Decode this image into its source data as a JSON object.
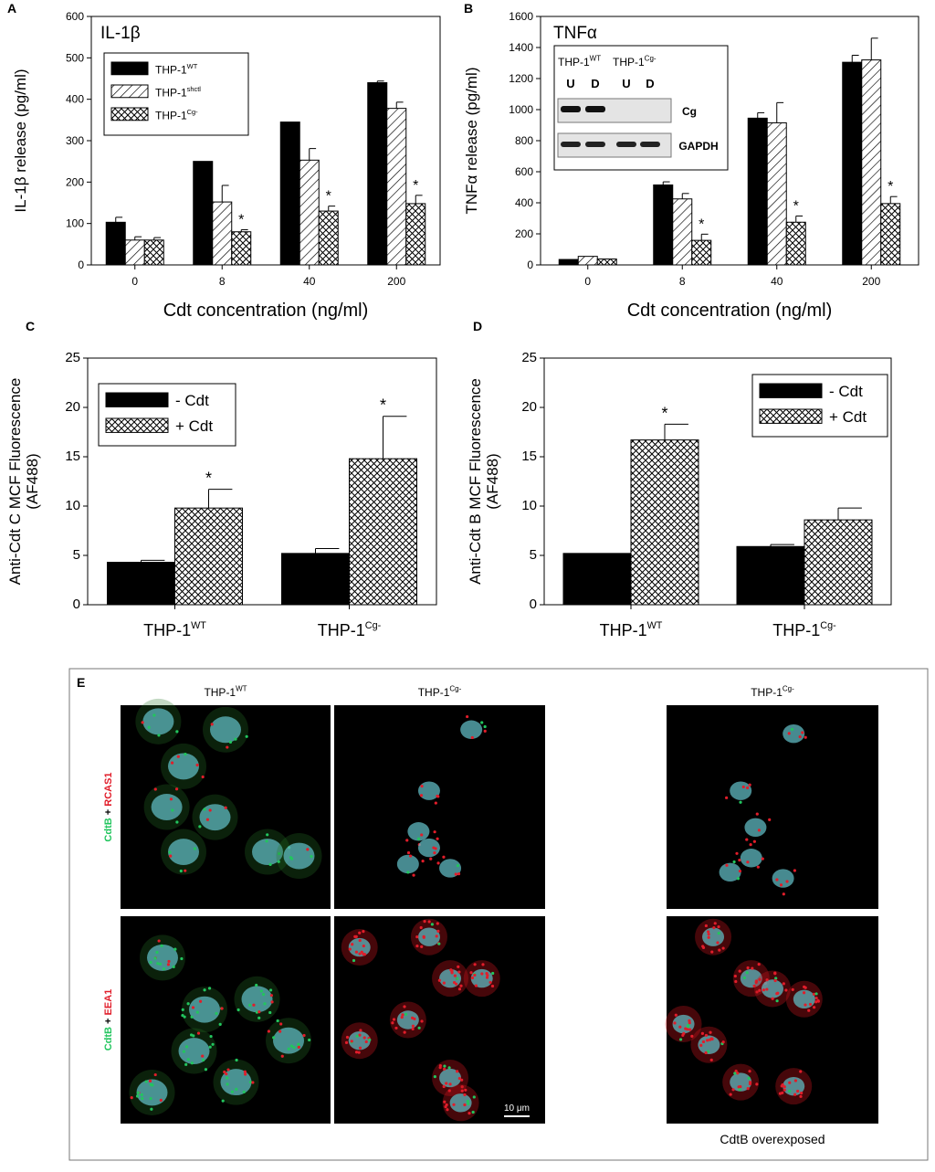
{
  "chart_data": [
    {
      "panel": "A",
      "type": "bar",
      "title": "IL-1β",
      "xlabel": "Cdt concentration (ng/ml)",
      "ylabel": "IL-1β release (pg/ml)",
      "ylim": [
        0,
        600
      ],
      "yticks": [
        0,
        100,
        200,
        300,
        400,
        500,
        600
      ],
      "categories": [
        "0",
        "8",
        "40",
        "200"
      ],
      "legend": "top-left",
      "series": [
        {
          "name": "THP-1",
          "sup": "WT",
          "pattern": "solid",
          "values": [
            103,
            250,
            345,
            440
          ],
          "errors": [
            12,
            0,
            0,
            4
          ]
        },
        {
          "name": "THP-1",
          "sup": "shctl",
          "pattern": "hatch",
          "values": [
            60,
            152,
            253,
            378
          ],
          "errors": [
            8,
            40,
            28,
            15
          ]
        },
        {
          "name": "THP-1",
          "sup": "Cg-",
          "pattern": "cross",
          "values": [
            60,
            80,
            130,
            148
          ],
          "errors": [
            6,
            5,
            12,
            20
          ]
        }
      ],
      "stars": [
        1,
        2,
        3
      ]
    },
    {
      "panel": "B",
      "type": "bar",
      "title": "TNFα",
      "xlabel": "Cdt  concentration (ng/ml)",
      "ylabel": "TNFα release (pg/ml)",
      "ylim": [
        0,
        1600
      ],
      "yticks": [
        0,
        200,
        400,
        600,
        800,
        1000,
        1200,
        1400,
        1600
      ],
      "categories": [
        "0",
        "8",
        "40",
        "200"
      ],
      "series": [
        {
          "name": "THP-1",
          "sup": "WT",
          "pattern": "solid",
          "values": [
            35,
            515,
            945,
            1305
          ],
          "errors": [
            0,
            20,
            35,
            45
          ]
        },
        {
          "name": "THP-1",
          "sup": "shctl",
          "pattern": "hatch",
          "values": [
            55,
            425,
            915,
            1320
          ],
          "errors": [
            0,
            35,
            130,
            140
          ]
        },
        {
          "name": "THP-1",
          "sup": "Cg-",
          "pattern": "cross",
          "values": [
            38,
            158,
            275,
            395
          ],
          "errors": [
            0,
            40,
            40,
            45
          ]
        }
      ],
      "stars": [
        1,
        2,
        3
      ],
      "inset": {
        "headers": [
          {
            "text": "THP-1",
            "sup": "WT"
          },
          {
            "text": "THP-1",
            "sup": "Cg-"
          }
        ],
        "lanes": [
          "U",
          "D",
          "U",
          "D"
        ],
        "rows": [
          "Cg",
          "GAPDH"
        ]
      }
    },
    {
      "panel": "C",
      "type": "bar",
      "ylabel": "Anti-Cdt C MCF Fluorescence",
      "ylabel2": "(AF488)",
      "ylim": [
        0,
        25
      ],
      "yticks": [
        0,
        5,
        10,
        15,
        20,
        25
      ],
      "categories": [
        {
          "text": "THP-1",
          "sup": "WT"
        },
        {
          "text": "THP-1",
          "sup": "Cg-"
        }
      ],
      "legend": "top-left",
      "series": [
        {
          "name": "-  Cdt",
          "pattern": "solid",
          "values": [
            4.3,
            5.2
          ],
          "errors": [
            0.2,
            0.5
          ]
        },
        {
          "name": "+ Cdt",
          "pattern": "cross",
          "values": [
            9.8,
            14.8
          ],
          "errors": [
            1.9,
            4.3
          ]
        }
      ],
      "stars": [
        0,
        1
      ]
    },
    {
      "panel": "D",
      "type": "bar",
      "ylabel": "Anti-Cdt B MCF Fluorescence",
      "ylabel2": "(AF488)",
      "ylim": [
        0,
        25
      ],
      "yticks": [
        0,
        5,
        10,
        15,
        20,
        25
      ],
      "categories": [
        {
          "text": "THP-1",
          "sup": "WT"
        },
        {
          "text": "THP-1",
          "sup": "Cg-"
        }
      ],
      "legend": "top-right",
      "series": [
        {
          "name": "-  Cdt",
          "pattern": "solid",
          "values": [
            5.2,
            5.9
          ],
          "errors": [
            0,
            0.2
          ]
        },
        {
          "name": "+ Cdt",
          "pattern": "cross",
          "values": [
            16.7,
            8.6
          ],
          "errors": [
            1.6,
            1.2
          ]
        }
      ],
      "stars": [
        0
      ]
    }
  ],
  "microscopy": {
    "panel": "E",
    "column_headers": [
      {
        "text": "THP-1",
        "sup": "WT"
      },
      {
        "text": "THP-1",
        "sup": "Cg-"
      },
      {
        "text": "THP-1",
        "sup": "Cg-"
      }
    ],
    "row_labels": [
      {
        "green": "CdtB",
        "plus": " + ",
        "red": "RCAS1"
      },
      {
        "green": "CdtB",
        "plus": " + ",
        "red": "EEA1"
      }
    ],
    "scale_bar": "10 μm",
    "caption": "CdtB overexposed",
    "colors": {
      "green": "#22c55e",
      "red": "#e11d2a",
      "nucleus": "#5fb8c0",
      "background": "#000000"
    }
  },
  "panel_letters": [
    "A",
    "B",
    "C",
    "D",
    "E"
  ],
  "star": "*"
}
